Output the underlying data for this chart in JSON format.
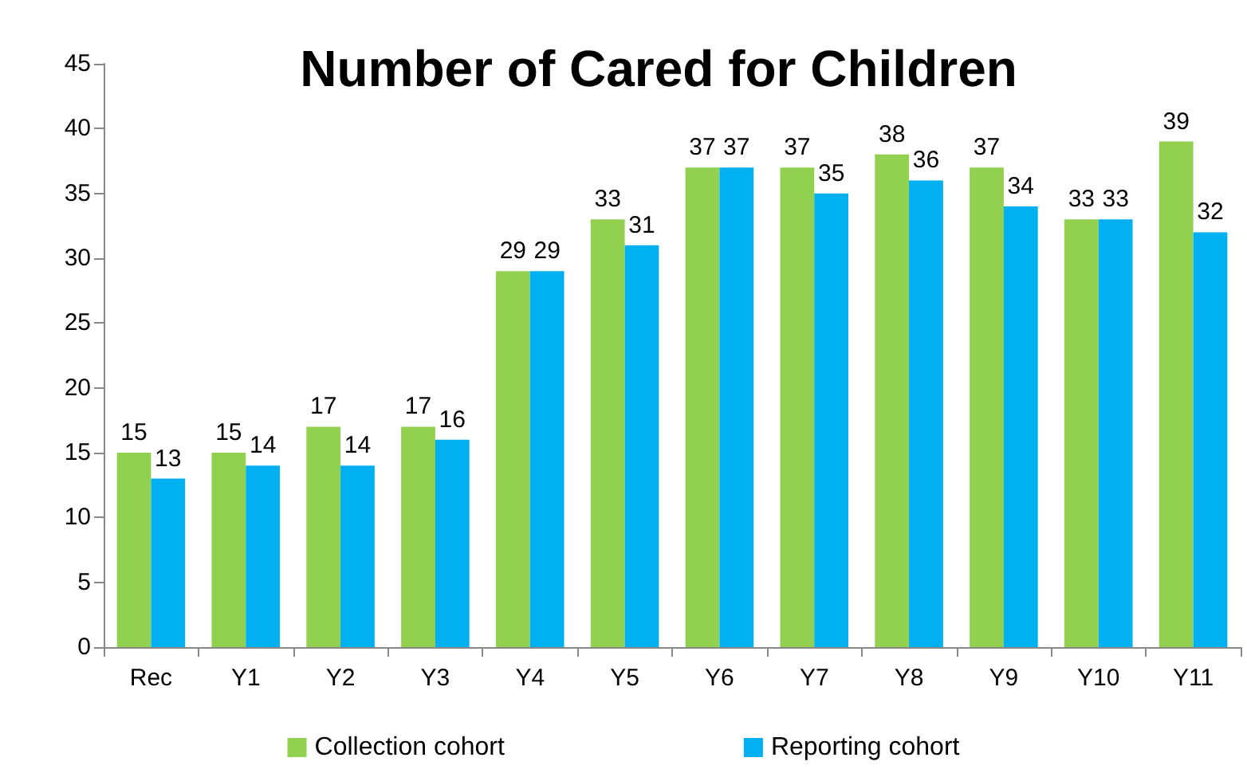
{
  "chart_data": {
    "type": "bar",
    "title": "Number of Cared for Children",
    "categories": [
      "Rec",
      "Y1",
      "Y2",
      "Y3",
      "Y4",
      "Y5",
      "Y6",
      "Y7",
      "Y8",
      "Y9",
      "Y10",
      "Y11"
    ],
    "series": [
      {
        "name": "Collection cohort",
        "color": "#92d050",
        "values": [
          15,
          15,
          17,
          17,
          29,
          33,
          37,
          37,
          38,
          37,
          33,
          39
        ]
      },
      {
        "name": "Reporting cohort",
        "color": "#00b0f0",
        "values": [
          13,
          14,
          14,
          16,
          29,
          31,
          37,
          35,
          36,
          34,
          33,
          32
        ]
      }
    ],
    "ylim": [
      0,
      45
    ],
    "yticks": [
      0,
      5,
      10,
      15,
      20,
      25,
      30,
      35,
      40,
      45
    ],
    "grid": false,
    "legend": "bottom",
    "data_labels": true
  }
}
